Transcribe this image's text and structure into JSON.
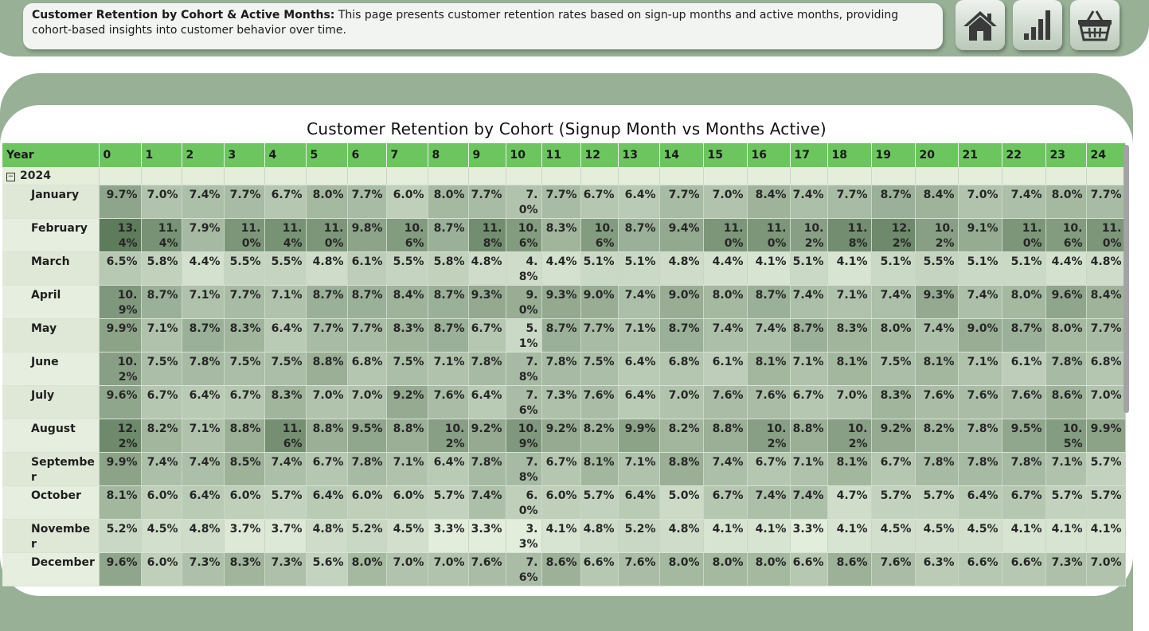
{
  "header": {
    "desc_title": "Customer Retention by Cohort & Active Months:",
    "desc_text": " This page presents customer retention rates based on sign-up months and active months, providing cohort-based insights into customer behavior over time.",
    "nav_buttons": [
      {
        "name": "home-button",
        "icon": "home-icon"
      },
      {
        "name": "chart-button",
        "icon": "bar-chart-icon"
      },
      {
        "name": "basket-button",
        "icon": "basket-icon"
      }
    ]
  },
  "colors": {
    "frame": "#97b096",
    "header_row": "#6dc560",
    "heat_low": "#e2eddc",
    "heat_high": "#5e7b5c"
  },
  "chart_data": {
    "type": "table",
    "title": "Customer Retention by Cohort (Signup Month vs Months Active)",
    "row_header_label": "Year",
    "group": "2024",
    "columns": [
      "0",
      "1",
      "2",
      "3",
      "4",
      "5",
      "6",
      "7",
      "8",
      "9",
      "10",
      "11",
      "12",
      "13",
      "14",
      "15",
      "16",
      "17",
      "18",
      "19",
      "20",
      "21",
      "22",
      "23",
      "24"
    ],
    "rows": [
      {
        "label": "January",
        "values": [
          9.7,
          7.0,
          7.4,
          7.7,
          6.7,
          8.0,
          7.7,
          6.0,
          8.0,
          7.7,
          7.0,
          7.7,
          6.7,
          6.4,
          7.7,
          7.0,
          8.4,
          7.4,
          7.7,
          8.7,
          8.4,
          7.0,
          7.4,
          8.0,
          7.7
        ]
      },
      {
        "label": "February",
        "values": [
          13.4,
          11.4,
          7.9,
          11.0,
          11.4,
          11.0,
          9.8,
          10.6,
          8.7,
          11.8,
          10.6,
          8.3,
          10.6,
          8.7,
          9.4,
          11.0,
          11.0,
          10.2,
          11.8,
          12.2,
          10.2,
          9.1,
          11.0,
          10.6,
          11.0
        ]
      },
      {
        "label": "March",
        "values": [
          6.5,
          5.8,
          4.4,
          5.5,
          5.5,
          4.8,
          6.1,
          5.5,
          5.8,
          4.8,
          4.8,
          4.4,
          5.1,
          5.1,
          4.8,
          4.4,
          4.1,
          5.1,
          4.1,
          5.1,
          5.5,
          5.1,
          5.1,
          4.4,
          4.8
        ]
      },
      {
        "label": "April",
        "values": [
          10.9,
          8.7,
          7.1,
          7.7,
          7.1,
          8.7,
          8.7,
          8.4,
          8.7,
          9.3,
          9.0,
          9.3,
          9.0,
          7.4,
          9.0,
          8.0,
          8.7,
          7.4,
          7.1,
          7.4,
          9.3,
          7.4,
          8.0,
          9.6,
          8.4
        ]
      },
      {
        "label": "May",
        "values": [
          9.9,
          7.1,
          8.7,
          8.3,
          6.4,
          7.7,
          7.7,
          8.3,
          8.7,
          6.7,
          5.1,
          8.7,
          7.7,
          7.1,
          8.7,
          7.4,
          7.4,
          8.7,
          8.3,
          8.0,
          7.4,
          9.0,
          8.7,
          8.0,
          7.7
        ]
      },
      {
        "label": "June",
        "values": [
          10.2,
          7.5,
          7.8,
          7.5,
          7.5,
          8.8,
          6.8,
          7.5,
          7.1,
          7.8,
          7.8,
          7.8,
          7.5,
          6.4,
          6.8,
          6.1,
          8.1,
          7.1,
          8.1,
          7.5,
          8.1,
          7.1,
          6.1,
          7.8,
          6.8
        ]
      },
      {
        "label": "July",
        "values": [
          9.6,
          6.7,
          6.4,
          6.7,
          8.3,
          7.0,
          7.0,
          9.2,
          7.6,
          6.4,
          7.6,
          7.3,
          7.6,
          6.4,
          7.0,
          7.6,
          7.6,
          6.7,
          7.0,
          8.3,
          7.6,
          7.6,
          7.6,
          8.6,
          7.0
        ]
      },
      {
        "label": "August",
        "values": [
          12.2,
          8.2,
          7.1,
          8.8,
          11.6,
          8.8,
          9.5,
          8.8,
          10.2,
          9.2,
          10.9,
          9.2,
          8.2,
          9.9,
          8.2,
          8.8,
          10.2,
          8.8,
          10.2,
          9.2,
          8.2,
          7.8,
          9.5,
          10.5,
          9.9
        ]
      },
      {
        "label": "September",
        "values": [
          9.9,
          7.4,
          7.4,
          8.5,
          7.4,
          6.7,
          7.8,
          7.1,
          6.4,
          7.8,
          7.8,
          6.7,
          8.1,
          7.1,
          8.8,
          7.4,
          6.7,
          7.1,
          8.1,
          6.7,
          7.8,
          7.8,
          7.8,
          7.1,
          5.7
        ]
      },
      {
        "label": "October",
        "values": [
          8.1,
          6.0,
          6.4,
          6.0,
          5.7,
          6.4,
          6.0,
          6.0,
          5.7,
          7.4,
          6.0,
          6.0,
          5.7,
          6.4,
          5.0,
          6.7,
          7.4,
          7.4,
          4.7,
          5.7,
          5.7,
          6.4,
          6.7,
          5.7,
          5.7
        ]
      },
      {
        "label": "November",
        "values": [
          5.2,
          4.5,
          4.8,
          3.7,
          3.7,
          4.8,
          5.2,
          4.5,
          3.3,
          3.3,
          3.3,
          4.1,
          4.8,
          5.2,
          4.8,
          4.1,
          4.1,
          3.3,
          4.1,
          4.5,
          4.5,
          4.5,
          4.1,
          4.1,
          4.1
        ]
      },
      {
        "label": "December",
        "values": [
          9.6,
          6.0,
          7.3,
          8.3,
          7.3,
          5.6,
          8.0,
          7.0,
          7.0,
          7.6,
          7.6,
          8.6,
          6.6,
          7.6,
          8.0,
          8.0,
          8.0,
          6.6,
          8.6,
          7.6,
          6.3,
          6.6,
          6.6,
          7.3,
          7.0
        ]
      }
    ],
    "value_suffix": "%",
    "color_scale": "green-sequential"
  }
}
